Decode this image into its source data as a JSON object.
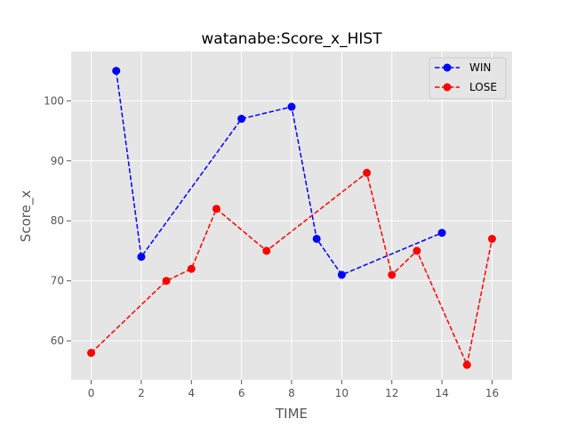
{
  "chart_data": {
    "type": "line",
    "title": "watanabe:Score_x_HIST",
    "xlabel": "TIME",
    "ylabel": "Score_x",
    "xlim": [
      -0.8,
      16.8
    ],
    "ylim": [
      53.5,
      108.2
    ],
    "xticks": [
      0,
      2,
      4,
      6,
      8,
      10,
      12,
      14,
      16
    ],
    "yticks": [
      60,
      70,
      80,
      90,
      100
    ],
    "grid": true,
    "legend_position": "top-right",
    "series": [
      {
        "name": "WIN",
        "color": "#0000ff",
        "line_style": "dashed",
        "marker": "circle",
        "points": [
          {
            "x": 1,
            "y": 105
          },
          {
            "x": 2,
            "y": 74
          },
          {
            "x": 6,
            "y": 97
          },
          {
            "x": 8,
            "y": 99
          },
          {
            "x": 9,
            "y": 77
          },
          {
            "x": 10,
            "y": 71
          },
          {
            "x": 14,
            "y": 78
          }
        ]
      },
      {
        "name": "LOSE",
        "color": "#ff0000",
        "line_style": "dashed",
        "marker": "circle",
        "points": [
          {
            "x": 0,
            "y": 58
          },
          {
            "x": 3,
            "y": 70
          },
          {
            "x": 4,
            "y": 72
          },
          {
            "x": 5,
            "y": 82
          },
          {
            "x": 7,
            "y": 75
          },
          {
            "x": 11,
            "y": 88
          },
          {
            "x": 12,
            "y": 71
          },
          {
            "x": 13,
            "y": 75
          },
          {
            "x": 15,
            "y": 56
          },
          {
            "x": 16,
            "y": 77
          }
        ]
      }
    ]
  }
}
